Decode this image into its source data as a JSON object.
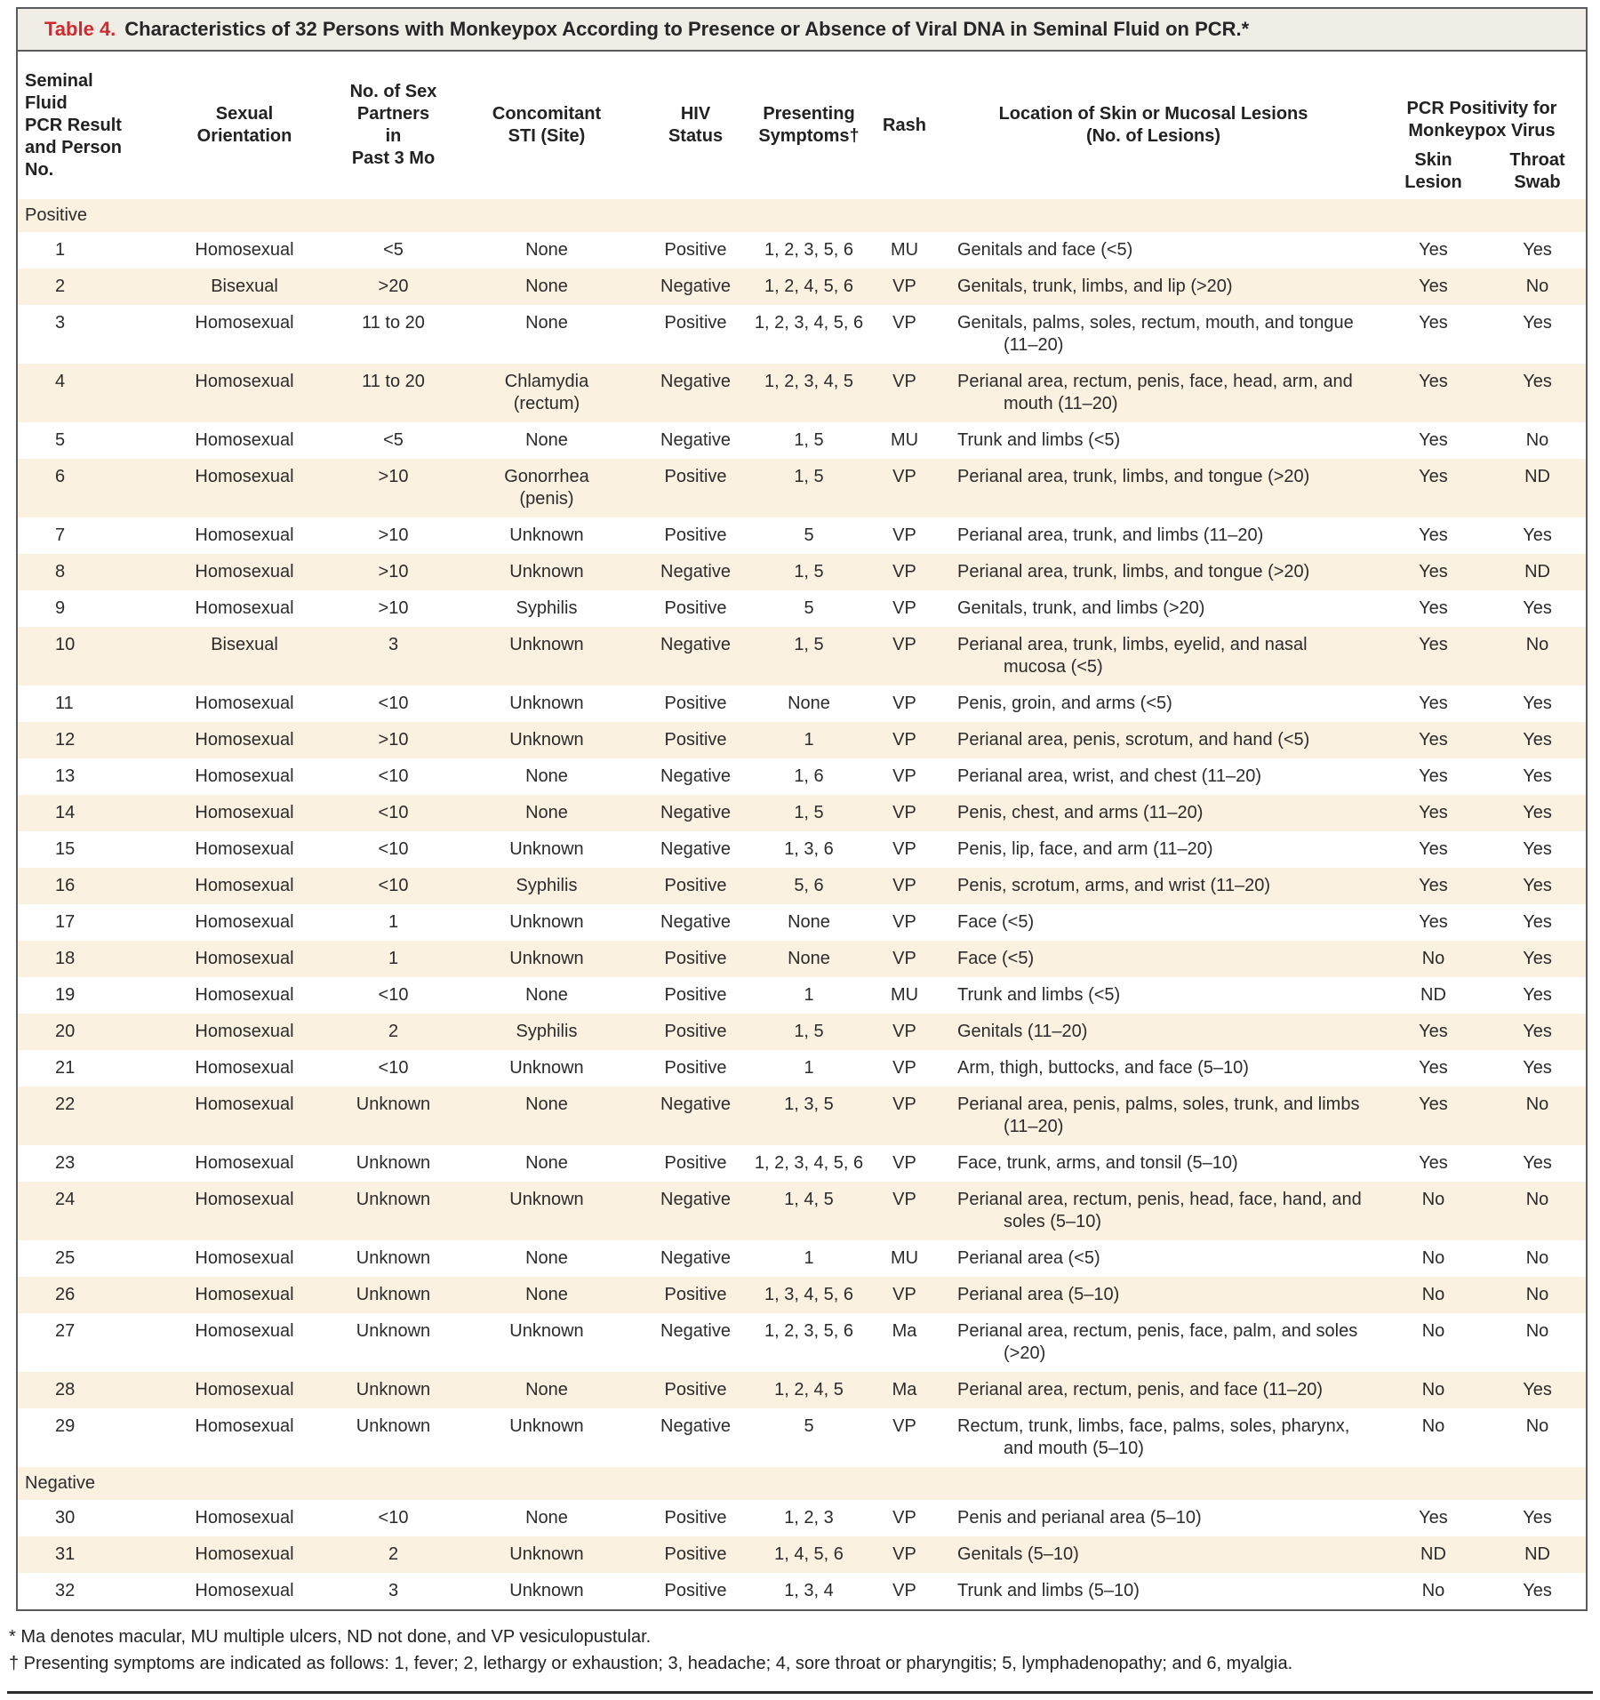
{
  "table": {
    "title_label": "Table 4.",
    "title_text": "Characteristics of 32 Persons with Monkeypox According to Presence or Absence of Viral DNA in Seminal Fluid on PCR.*",
    "columns": {
      "person": "Seminal Fluid\nPCR Result\nand Person\nNo.",
      "orientation": "Sexual\nOrientation",
      "partners": "No. of Sex\nPartners in\nPast 3 Mo",
      "sti": "Concomitant\nSTI (Site)",
      "hiv": "HIV\nStatus",
      "symptoms": "Presenting\nSymptoms†",
      "rash": "Rash",
      "location": "Location of Skin or Mucosal Lesions\n(No. of Lesions)",
      "pcr_group": "PCR Positivity for\nMonkeypox Virus",
      "skin": "Skin\nLesion",
      "throat": "Throat\nSwab"
    },
    "sections": [
      {
        "label": "Positive",
        "rows": [
          {
            "no": "1",
            "orientation": "Homosexual",
            "partners": "<5",
            "sti": "None",
            "hiv": "Positive",
            "symptoms": "1, 2, 3, 5, 6",
            "rash": "MU",
            "location": "Genitals and face (<5)",
            "skin": "Yes",
            "throat": "Yes"
          },
          {
            "no": "2",
            "orientation": "Bisexual",
            "partners": ">20",
            "sti": "None",
            "hiv": "Negative",
            "symptoms": "1, 2, 4, 5, 6",
            "rash": "VP",
            "location": "Genitals, trunk, limbs, and lip (>20)",
            "skin": "Yes",
            "throat": "No"
          },
          {
            "no": "3",
            "orientation": "Homosexual",
            "partners": "11 to 20",
            "sti": "None",
            "hiv": "Positive",
            "symptoms": "1, 2, 3, 4, 5, 6",
            "rash": "VP",
            "location": "Genitals, palms, soles, rectum, mouth, and tongue (11–20)",
            "skin": "Yes",
            "throat": "Yes"
          },
          {
            "no": "4",
            "orientation": "Homosexual",
            "partners": "11 to 20",
            "sti": "Chlamydia\n(rectum)",
            "hiv": "Negative",
            "symptoms": "1, 2, 3, 4, 5",
            "rash": "VP",
            "location": "Perianal area, rectum, penis, face, head, arm, and mouth (11–20)",
            "skin": "Yes",
            "throat": "Yes"
          },
          {
            "no": "5",
            "orientation": "Homosexual",
            "partners": "<5",
            "sti": "None",
            "hiv": "Negative",
            "symptoms": "1, 5",
            "rash": "MU",
            "location": "Trunk and limbs (<5)",
            "skin": "Yes",
            "throat": "No"
          },
          {
            "no": "6",
            "orientation": "Homosexual",
            "partners": ">10",
            "sti": "Gonorrhea\n(penis)",
            "hiv": "Positive",
            "symptoms": "1, 5",
            "rash": "VP",
            "location": "Perianal area, trunk, limbs, and tongue (>20)",
            "skin": "Yes",
            "throat": "ND"
          },
          {
            "no": "7",
            "orientation": "Homosexual",
            "partners": ">10",
            "sti": "Unknown",
            "hiv": "Positive",
            "symptoms": "5",
            "rash": "VP",
            "location": "Perianal area, trunk, and limbs (11–20)",
            "skin": "Yes",
            "throat": "Yes"
          },
          {
            "no": "8",
            "orientation": "Homosexual",
            "partners": ">10",
            "sti": "Unknown",
            "hiv": "Negative",
            "symptoms": "1, 5",
            "rash": "VP",
            "location": "Perianal area, trunk, limbs, and tongue (>20)",
            "skin": "Yes",
            "throat": "ND"
          },
          {
            "no": "9",
            "orientation": "Homosexual",
            "partners": ">10",
            "sti": "Syphilis",
            "hiv": "Positive",
            "symptoms": "5",
            "rash": "VP",
            "location": "Genitals, trunk, and limbs (>20)",
            "skin": "Yes",
            "throat": "Yes"
          },
          {
            "no": "10",
            "orientation": "Bisexual",
            "partners": "3",
            "sti": "Unknown",
            "hiv": "Negative",
            "symptoms": "1, 5",
            "rash": "VP",
            "location": "Perianal area, trunk, limbs, eyelid, and nasal mucosa (<5)",
            "skin": "Yes",
            "throat": "No"
          },
          {
            "no": "11",
            "orientation": "Homosexual",
            "partners": "<10",
            "sti": "Unknown",
            "hiv": "Positive",
            "symptoms": "None",
            "rash": "VP",
            "location": "Penis, groin, and arms (<5)",
            "skin": "Yes",
            "throat": "Yes"
          },
          {
            "no": "12",
            "orientation": "Homosexual",
            "partners": ">10",
            "sti": "Unknown",
            "hiv": "Positive",
            "symptoms": "1",
            "rash": "VP",
            "location": "Perianal area, penis, scrotum, and hand (<5)",
            "skin": "Yes",
            "throat": "Yes"
          },
          {
            "no": "13",
            "orientation": "Homosexual",
            "partners": "<10",
            "sti": "None",
            "hiv": "Negative",
            "symptoms": "1, 6",
            "rash": "VP",
            "location": "Perianal area, wrist, and chest (11–20)",
            "skin": "Yes",
            "throat": "Yes"
          },
          {
            "no": "14",
            "orientation": "Homosexual",
            "partners": "<10",
            "sti": "None",
            "hiv": "Negative",
            "symptoms": "1, 5",
            "rash": "VP",
            "location": "Penis, chest, and arms (11–20)",
            "skin": "Yes",
            "throat": "Yes"
          },
          {
            "no": "15",
            "orientation": "Homosexual",
            "partners": "<10",
            "sti": "Unknown",
            "hiv": "Negative",
            "symptoms": "1, 3, 6",
            "rash": "VP",
            "location": "Penis, lip, face, and arm (11–20)",
            "skin": "Yes",
            "throat": "Yes"
          },
          {
            "no": "16",
            "orientation": "Homosexual",
            "partners": "<10",
            "sti": "Syphilis",
            "hiv": "Positive",
            "symptoms": "5, 6",
            "rash": "VP",
            "location": "Penis, scrotum, arms, and wrist (11–20)",
            "skin": "Yes",
            "throat": "Yes"
          },
          {
            "no": "17",
            "orientation": "Homosexual",
            "partners": "1",
            "sti": "Unknown",
            "hiv": "Negative",
            "symptoms": "None",
            "rash": "VP",
            "location": "Face (<5)",
            "skin": "Yes",
            "throat": "Yes"
          },
          {
            "no": "18",
            "orientation": "Homosexual",
            "partners": "1",
            "sti": "Unknown",
            "hiv": "Positive",
            "symptoms": "None",
            "rash": "VP",
            "location": "Face (<5)",
            "skin": "No",
            "throat": "Yes"
          },
          {
            "no": "19",
            "orientation": "Homosexual",
            "partners": "<10",
            "sti": "None",
            "hiv": "Positive",
            "symptoms": "1",
            "rash": "MU",
            "location": "Trunk and limbs (<5)",
            "skin": "ND",
            "throat": "Yes"
          },
          {
            "no": "20",
            "orientation": "Homosexual",
            "partners": "2",
            "sti": "Syphilis",
            "hiv": "Positive",
            "symptoms": "1, 5",
            "rash": "VP",
            "location": "Genitals (11–20)",
            "skin": "Yes",
            "throat": "Yes"
          },
          {
            "no": "21",
            "orientation": "Homosexual",
            "partners": "<10",
            "sti": "Unknown",
            "hiv": "Positive",
            "symptoms": "1",
            "rash": "VP",
            "location": "Arm, thigh, buttocks, and face (5–10)",
            "skin": "Yes",
            "throat": "Yes"
          },
          {
            "no": "22",
            "orientation": "Homosexual",
            "partners": "Unknown",
            "sti": "None",
            "hiv": "Negative",
            "symptoms": "1, 3, 5",
            "rash": "VP",
            "location": "Perianal area, penis, palms, soles, trunk, and limbs (11–20)",
            "skin": "Yes",
            "throat": "No"
          },
          {
            "no": "23",
            "orientation": "Homosexual",
            "partners": "Unknown",
            "sti": "None",
            "hiv": "Positive",
            "symptoms": "1, 2, 3, 4, 5, 6",
            "rash": "VP",
            "location": "Face, trunk, arms, and tonsil (5–10)",
            "skin": "Yes",
            "throat": "Yes"
          },
          {
            "no": "24",
            "orientation": "Homosexual",
            "partners": "Unknown",
            "sti": "Unknown",
            "hiv": "Negative",
            "symptoms": "1, 4, 5",
            "rash": "VP",
            "location": "Perianal area, rectum, penis, head, face, hand, and soles (5–10)",
            "skin": "No",
            "throat": "No"
          },
          {
            "no": "25",
            "orientation": "Homosexual",
            "partners": "Unknown",
            "sti": "None",
            "hiv": "Negative",
            "symptoms": "1",
            "rash": "MU",
            "location": "Perianal area (<5)",
            "skin": "No",
            "throat": "No"
          },
          {
            "no": "26",
            "orientation": "Homosexual",
            "partners": "Unknown",
            "sti": "None",
            "hiv": "Positive",
            "symptoms": "1, 3, 4, 5, 6",
            "rash": "VP",
            "location": "Perianal area (5–10)",
            "skin": "No",
            "throat": "No"
          },
          {
            "no": "27",
            "orientation": "Homosexual",
            "partners": "Unknown",
            "sti": "Unknown",
            "hiv": "Negative",
            "symptoms": "1, 2, 3, 5, 6",
            "rash": "Ma",
            "location": "Perianal area, rectum, penis, face, palm, and soles (>20)",
            "skin": "No",
            "throat": "No"
          },
          {
            "no": "28",
            "orientation": "Homosexual",
            "partners": "Unknown",
            "sti": "None",
            "hiv": "Positive",
            "symptoms": "1, 2, 4, 5",
            "rash": "Ma",
            "location": "Perianal area, rectum, penis, and face (11–20)",
            "skin": "No",
            "throat": "Yes"
          },
          {
            "no": "29",
            "orientation": "Homosexual",
            "partners": "Unknown",
            "sti": "Unknown",
            "hiv": "Negative",
            "symptoms": "5",
            "rash": "VP",
            "location": "Rectum, trunk, limbs, face, palms, soles, pharynx, and mouth (5–10)",
            "skin": "No",
            "throat": "No"
          }
        ]
      },
      {
        "label": "Negative",
        "rows": [
          {
            "no": "30",
            "orientation": "Homosexual",
            "partners": "<10",
            "sti": "None",
            "hiv": "Positive",
            "symptoms": "1, 2, 3",
            "rash": "VP",
            "location": "Penis and perianal area (5–10)",
            "skin": "Yes",
            "throat": "Yes"
          },
          {
            "no": "31",
            "orientation": "Homosexual",
            "partners": "2",
            "sti": "Unknown",
            "hiv": "Positive",
            "symptoms": "1, 4, 5, 6",
            "rash": "VP",
            "location": "Genitals (5–10)",
            "skin": "ND",
            "throat": "ND"
          },
          {
            "no": "32",
            "orientation": "Homosexual",
            "partners": "3",
            "sti": "Unknown",
            "hiv": "Positive",
            "symptoms": "1, 3, 4",
            "rash": "VP",
            "location": "Trunk and limbs (5–10)",
            "skin": "No",
            "throat": "Yes"
          }
        ]
      }
    ],
    "footnotes": [
      "* Ma denotes macular, MU multiple ulcers, ND not done, and VP vesiculopustular.",
      "† Presenting symptoms are indicated as follows: 1, fever; 2, lethargy or exhaustion; 3, headache; 4, sore throat or pharyngitis; 5, lymphadenopathy; and 6, myalgia."
    ],
    "colors": {
      "accent_red": "#d02a2e",
      "stripe": "#fbf1e0",
      "title_bg": "#f0ede7",
      "border": "#595a5c"
    }
  }
}
